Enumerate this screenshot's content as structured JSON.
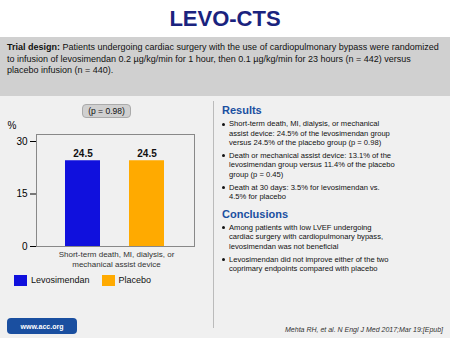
{
  "chart_data": {
    "type": "bar",
    "title": "LEVO-CTS",
    "subtitle": [
      "Trial design:",
      "Patients undergoing cardiac surgery with the use of cardiopulmonary bypass were randomized to infusion of levosimendan 0.2 µg/kg/min for 1 hour, then 0.1 µg/kg/min for 23 hours (n = 442) versus placebo infusion (n = 440)."
    ],
    "categories": [
      "Levosimendan",
      "Placebo"
    ],
    "values": [
      24.5,
      24.5
    ],
    "colors": [
      "#1010dd",
      "#ffaa00"
    ],
    "ylabel": "%",
    "xlabel": "Short-term death, MI, dialysis, or\nmechanical assist device",
    "ylim": [
      0,
      32
    ],
    "yticks": [
      0,
      15,
      30
    ],
    "grid": false,
    "legend": "bottom",
    "data_labels": true,
    "tick_labels": "y",
    "annotations": [
      "(p = 0.98)"
    ],
    "sections": [
      {
        "title": "Results",
        "color": "#1a4fa0",
        "bullets": [
          "Short-term death, MI, dialysis, or mechanical\nassist device: 24.5% of the levosimendan group\nversus 24.5% of the placebo group (p = 0.98)",
          "Death or mechanical assist device: 13.1% of the\nlevosimendan group versus 11.4% of the placebo\ngroup (p = 0.45)",
          "Death at 30 days: 3.5% for levosimendan vs.\n4.5% for placebo"
        ]
      },
      {
        "title": "Conclusions",
        "color": "#1a4fa0",
        "bullets": [
          "Among patients with low LVEF undergoing\ncardiac surgery with cardiopulmonary bypass,\nlevosimendan was not beneficial",
          "Levosimendan did not improve either of the two\ncoprimary endpoints compared with placebo"
        ]
      }
    ],
    "footer": [
      "www.acc.org",
      "Mehta RH, et al. N Engl J Med 2017;Mar 19:[Epub]"
    ]
  }
}
